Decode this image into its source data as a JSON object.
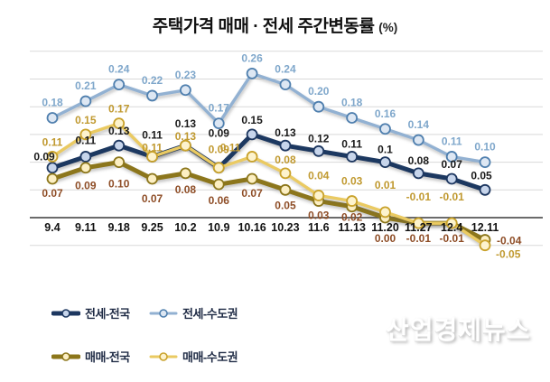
{
  "title": {
    "main": "주택가격 매매 · 전세 주간변동률",
    "unit": "(%)"
  },
  "watermark": "산업경제뉴스",
  "chart_data": {
    "type": "line",
    "title": "주택가격 매매 · 전세 주간변동률 (%)",
    "xlabel": "",
    "ylabel": "",
    "ylim": [
      -0.07,
      0.31
    ],
    "gridlines": [
      0.3,
      0.25,
      0.2,
      0.15,
      0.1,
      0.05,
      0.0,
      -0.05
    ],
    "zero_line": true,
    "grid": true,
    "legend_position": "bottom-left",
    "categories": [
      "9.4",
      "9.11",
      "9.18",
      "9.25",
      "10.2",
      "10.9",
      "10.16",
      "10.23",
      "11.6",
      "11.13",
      "11.20",
      "11.27",
      "12.4",
      "12.11"
    ],
    "series": [
      {
        "name": "전세-전국",
        "style": "thick",
        "line_color": "#1d3760",
        "marker_fill": "#c7d5eb",
        "marker_stroke": "#1d3760",
        "label_color": "#1a1a1a",
        "values": [
          0.09,
          0.11,
          0.13,
          0.11,
          0.13,
          0.09,
          0.15,
          0.13,
          0.12,
          0.11,
          0.1,
          0.08,
          0.07,
          0.05
        ],
        "labels": [
          "0.09",
          "0.11",
          "0.13",
          "0.11",
          "0.13",
          "0.09",
          "0.15",
          "0.13",
          "0.12",
          "0.11",
          "0.1",
          "0.08",
          "0.07",
          "0.05"
        ]
      },
      {
        "name": "전세-수도권",
        "style": "thin",
        "line_color": "#92b1d2",
        "marker_fill": "#dde7f3",
        "marker_stroke": "#4f7fae",
        "label_color": "#7fa7cb",
        "values": [
          0.18,
          0.21,
          0.24,
          0.22,
          0.23,
          0.17,
          0.26,
          0.24,
          0.2,
          0.18,
          0.16,
          0.14,
          0.11,
          0.1
        ],
        "labels": [
          "0.18",
          "0.21",
          "0.24",
          "0.22",
          "0.23",
          "0.17",
          "0.26",
          "0.24",
          "0.20",
          "0.18",
          "0.16",
          "0.14",
          "0.11",
          "0.10"
        ]
      },
      {
        "name": "매매-전국",
        "style": "thick",
        "line_color": "#8c761a",
        "marker_fill": "#fcefc3",
        "marker_stroke": "#8c761a",
        "label_color": "#8e4d26",
        "values": [
          0.07,
          0.09,
          0.1,
          0.07,
          0.08,
          0.06,
          0.07,
          0.05,
          0.03,
          0.02,
          0.0,
          -0.01,
          -0.01,
          -0.04
        ],
        "labels": [
          "0.07",
          "0.09",
          "0.10",
          "0.07",
          "0.08",
          "0.06",
          "0.07",
          "0.05",
          "0.03",
          "0.02",
          "0.00",
          "-0.01",
          "-0.01",
          "-0.04"
        ]
      },
      {
        "name": "매매-수도권",
        "style": "thin",
        "line_color": "#eaca62",
        "marker_fill": "#fdf3cd",
        "marker_stroke": "#c9a22b",
        "label_color": "#c0992f",
        "values": [
          0.11,
          0.15,
          0.17,
          0.11,
          0.13,
          0.09,
          0.11,
          0.08,
          0.04,
          0.03,
          0.01,
          -0.01,
          -0.01,
          -0.05
        ],
        "labels": [
          "0.11",
          "0.15",
          "0.17",
          "0.11",
          "0.13",
          "0.09",
          "0.11",
          "0.08",
          "0.04",
          "0.03",
          "0.01",
          "-0.01",
          "-0.01",
          "-0.05"
        ]
      }
    ]
  },
  "legend": {
    "items": [
      "전세-전국",
      "전세-수도권",
      "매매-전국",
      "매매-수도권"
    ]
  }
}
